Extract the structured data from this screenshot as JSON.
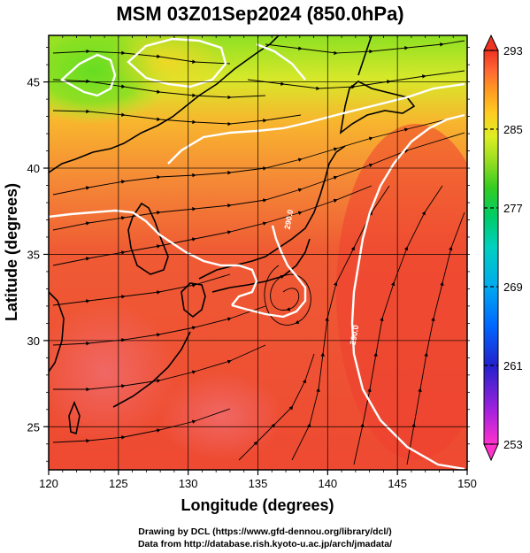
{
  "title": "MSM 03Z01Sep2024 (850.0hPa)",
  "x_axis": {
    "label": "Longitude (degrees)",
    "min": 120,
    "max": 150,
    "ticks": [
      120,
      125,
      130,
      135,
      140,
      145,
      150
    ],
    "tick_labels": [
      "120",
      "125",
      "130",
      "135",
      "140",
      "145",
      "150"
    ]
  },
  "y_axis": {
    "label": "Latitude (degrees)",
    "min": 22.5,
    "max": 47.7,
    "ticks": [
      25,
      30,
      35,
      40,
      45
    ],
    "tick_labels": [
      "25",
      "30",
      "35",
      "40",
      "45"
    ]
  },
  "colorbar": {
    "min": 253,
    "max": 293,
    "labels": [
      "293",
      "285",
      "277",
      "269",
      "261",
      "253"
    ],
    "label_values": [
      293,
      285,
      277,
      269,
      261,
      253
    ],
    "colors": [
      "#ff33cc",
      "#aa22dd",
      "#3333cc",
      "#0055ff",
      "#00aaff",
      "#00dddd",
      "#00cc88",
      "#22cc22",
      "#88dd22",
      "#ccee22",
      "#ffdd22",
      "#ffaa22",
      "#ff7733",
      "#ff4433",
      "#ee3322"
    ]
  },
  "contour_labels": [
    {
      "text": "290.0",
      "lon": 137.4,
      "lat": 37.0
    },
    {
      "text": "290.0",
      "lon": 142.1,
      "lat": 30.3
    }
  ],
  "credits": {
    "line1": "Drawing by DCL (https://www.gfd-dennou.org/library/dcl/)",
    "line2": "Data from http://database.rish.kyoto-u.ac.jp/arch/jmadata/"
  }
}
